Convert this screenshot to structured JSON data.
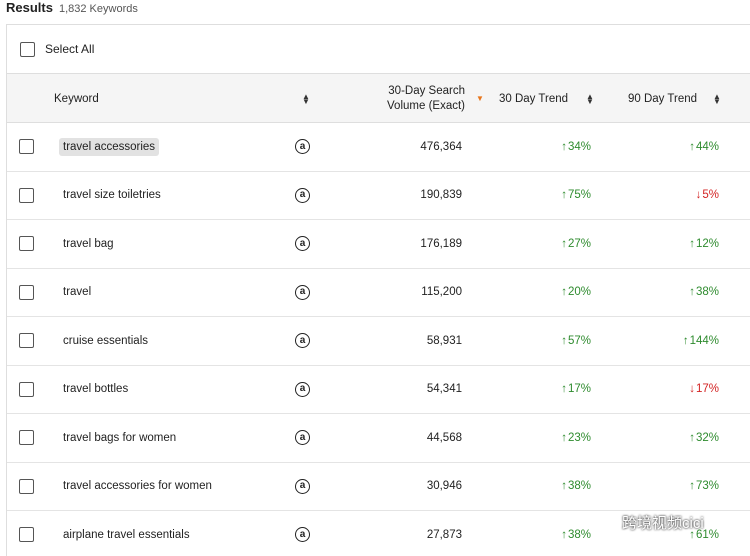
{
  "header": {
    "title": "Results",
    "count": "1,832 Keywords"
  },
  "select_all": {
    "label": "Select All"
  },
  "columns": {
    "keyword": "Keyword",
    "volume_line1": "30-Day Search",
    "volume_line2": "Volume (Exact)",
    "trend30": "30 Day Trend",
    "trend90": "90 Day Trend"
  },
  "icons": {
    "amazon": "amazon-logo-icon",
    "sort": "sort-arrows-icon",
    "sort_active": "sort-desc-icon",
    "watermark": "wechat-icon"
  },
  "colors": {
    "up": "#2e8b2e",
    "down": "#d32424",
    "sort_active": "#e8761c"
  },
  "rows": [
    {
      "keyword": "travel accessories",
      "volume": "476,364",
      "trend30": {
        "dir": "up",
        "value": "34%"
      },
      "trend90": {
        "dir": "up",
        "value": "44%"
      },
      "highlight": true
    },
    {
      "keyword": "travel size toiletries",
      "volume": "190,839",
      "trend30": {
        "dir": "up",
        "value": "75%"
      },
      "trend90": {
        "dir": "down",
        "value": "5%"
      }
    },
    {
      "keyword": "travel bag",
      "volume": "176,189",
      "trend30": {
        "dir": "up",
        "value": "27%"
      },
      "trend90": {
        "dir": "up",
        "value": "12%"
      }
    },
    {
      "keyword": "travel",
      "volume": "115,200",
      "trend30": {
        "dir": "up",
        "value": "20%"
      },
      "trend90": {
        "dir": "up",
        "value": "38%"
      }
    },
    {
      "keyword": "cruise essentials",
      "volume": "58,931",
      "trend30": {
        "dir": "up",
        "value": "57%"
      },
      "trend90": {
        "dir": "up",
        "value": "144%"
      }
    },
    {
      "keyword": "travel bottles",
      "volume": "54,341",
      "trend30": {
        "dir": "up",
        "value": "17%"
      },
      "trend90": {
        "dir": "down",
        "value": "17%"
      }
    },
    {
      "keyword": "travel bags for women",
      "volume": "44,568",
      "trend30": {
        "dir": "up",
        "value": "23%"
      },
      "trend90": {
        "dir": "up",
        "value": "32%"
      }
    },
    {
      "keyword": "travel accessories for women",
      "volume": "30,946",
      "trend30": {
        "dir": "up",
        "value": "38%"
      },
      "trend90": {
        "dir": "up",
        "value": "73%"
      }
    },
    {
      "keyword": "airplane travel essentials",
      "volume": "27,873",
      "trend30": {
        "dir": "up",
        "value": "38%"
      },
      "trend90": {
        "dir": "up",
        "value": "61%"
      }
    }
  ],
  "watermark": {
    "text": "跨境视频cici"
  }
}
